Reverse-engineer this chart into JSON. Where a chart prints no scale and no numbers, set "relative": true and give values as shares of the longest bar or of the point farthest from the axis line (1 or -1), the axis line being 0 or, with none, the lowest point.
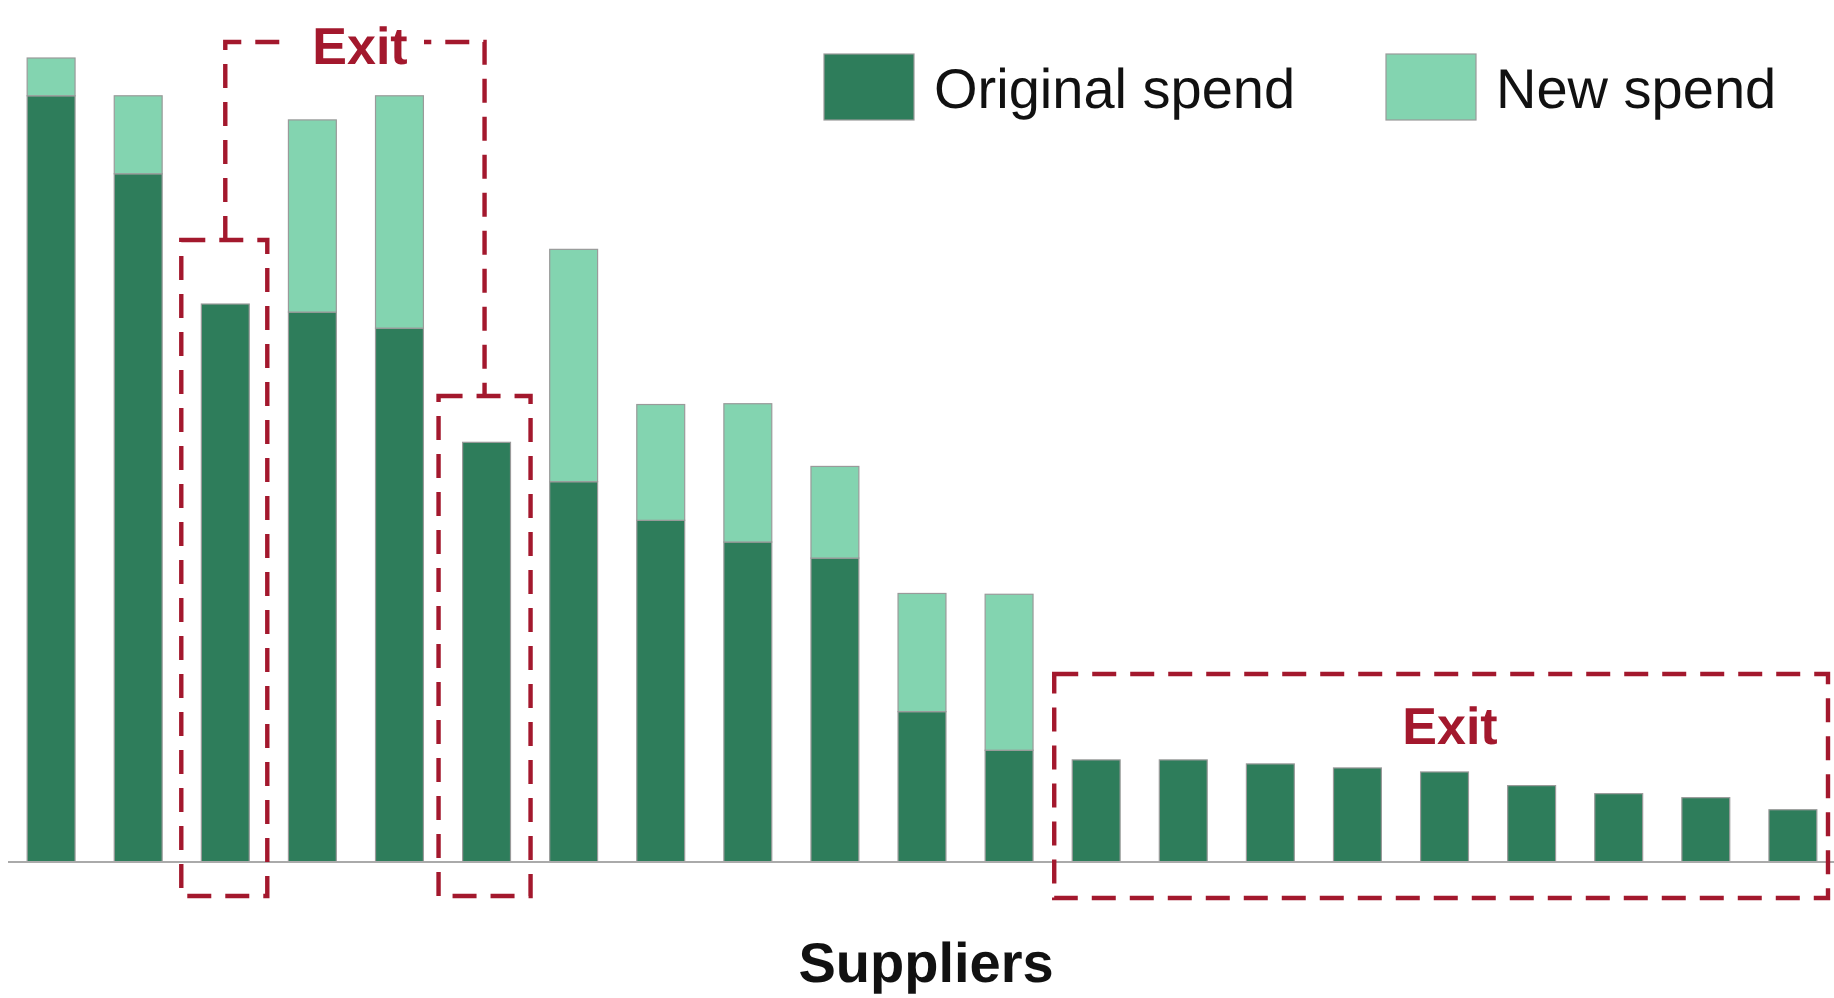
{
  "chart_data": {
    "type": "bar",
    "stacked": true,
    "relative": true,
    "xlabel": "Suppliers",
    "legend": "top right",
    "categories": [
      null,
      null,
      null,
      null,
      null,
      null,
      null,
      null,
      null,
      null,
      null,
      null,
      null,
      null,
      null,
      null,
      null,
      null,
      null,
      null,
      null
    ],
    "series": [
      {
        "name": "Original spend",
        "color": "#2e7d5b",
        "values": [
          0.953,
          0.856,
          0.694,
          0.684,
          0.664,
          0.522,
          0.473,
          0.425,
          0.398,
          0.378,
          0.187,
          0.139,
          0.127,
          0.127,
          0.122,
          0.117,
          0.112,
          0.095,
          0.085,
          0.08,
          0.065
        ]
      },
      {
        "name": "New spend",
        "color": "#83d4b0",
        "values": [
          0.047,
          0.097,
          null,
          0.239,
          0.289,
          null,
          0.289,
          0.144,
          0.172,
          0.114,
          0.147,
          0.194,
          null,
          null,
          null,
          null,
          null,
          null,
          null,
          null,
          null
        ]
      }
    ],
    "annotations": [
      "Exit",
      "Exit"
    ]
  }
}
